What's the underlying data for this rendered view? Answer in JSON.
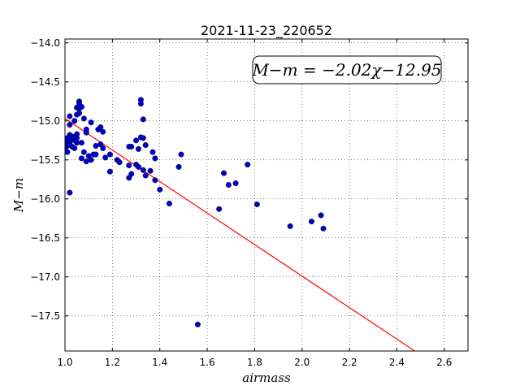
{
  "chart_data": {
    "type": "scatter",
    "title": "2021-11-23_220652",
    "xlabel": "airmass",
    "ylabel": "M−m",
    "xlim": [
      1.0,
      2.7
    ],
    "ylim": [
      -17.95,
      -13.95
    ],
    "grid": true,
    "x_ticks": [
      1.0,
      1.2,
      1.4,
      1.6,
      1.8,
      2.0,
      2.2,
      2.4,
      2.6
    ],
    "x_tick_labels": [
      "1.0",
      "1.2",
      "1.4",
      "1.6",
      "1.8",
      "2.0",
      "2.2",
      "2.4",
      "2.6"
    ],
    "y_ticks": [
      -14.0,
      -14.5,
      -15.0,
      -15.5,
      -16.0,
      -16.5,
      -17.0,
      -17.5
    ],
    "y_tick_labels": [
      "−14.0",
      "−14.5",
      "−15.0",
      "−15.5",
      "−16.0",
      "−16.5",
      "−17.0",
      "−17.5"
    ],
    "annotation": "M−m = −2.02χ−12.95",
    "fit": {
      "slope": -2.02,
      "intercept": -12.95,
      "color": "#ff0000"
    },
    "point_color": "#0000cc",
    "points": [
      [
        1.0,
        -15.35
      ],
      [
        1.0,
        -15.28
      ],
      [
        1.01,
        -15.4
      ],
      [
        1.01,
        -15.32
      ],
      [
        1.01,
        -15.22
      ],
      [
        1.02,
        -15.05
      ],
      [
        1.02,
        -15.18
      ],
      [
        1.02,
        -15.26
      ],
      [
        1.02,
        -15.3
      ],
      [
        1.02,
        -15.92
      ],
      [
        1.02,
        -14.94
      ],
      [
        1.03,
        -15.33
      ],
      [
        1.03,
        -15.2
      ],
      [
        1.04,
        -15.0
      ],
      [
        1.04,
        -15.35
      ],
      [
        1.04,
        -15.25
      ],
      [
        1.05,
        -15.17
      ],
      [
        1.05,
        -15.22
      ],
      [
        1.05,
        -14.83
      ],
      [
        1.05,
        -14.92
      ],
      [
        1.05,
        -15.28
      ],
      [
        1.06,
        -14.75
      ],
      [
        1.06,
        -14.78
      ],
      [
        1.06,
        -14.84
      ],
      [
        1.06,
        -14.9
      ],
      [
        1.07,
        -14.82
      ],
      [
        1.07,
        -15.28
      ],
      [
        1.07,
        -15.48
      ],
      [
        1.08,
        -15.4
      ],
      [
        1.08,
        -14.97
      ],
      [
        1.09,
        -15.11
      ],
      [
        1.09,
        -15.15
      ],
      [
        1.09,
        -15.52
      ],
      [
        1.1,
        -15.45
      ],
      [
        1.11,
        -15.02
      ],
      [
        1.11,
        -15.5
      ],
      [
        1.12,
        -15.43
      ],
      [
        1.13,
        -15.32
      ],
      [
        1.13,
        -15.43
      ],
      [
        1.14,
        -15.11
      ],
      [
        1.15,
        -15.08
      ],
      [
        1.15,
        -15.3
      ],
      [
        1.16,
        -15.35
      ],
      [
        1.16,
        -15.14
      ],
      [
        1.17,
        -15.47
      ],
      [
        1.19,
        -15.65
      ],
      [
        1.19,
        -15.43
      ],
      [
        1.22,
        -15.5
      ],
      [
        1.23,
        -15.53
      ],
      [
        1.27,
        -15.33
      ],
      [
        1.27,
        -15.57
      ],
      [
        1.27,
        -15.73
      ],
      [
        1.28,
        -15.33
      ],
      [
        1.28,
        -15.68
      ],
      [
        1.3,
        -15.25
      ],
      [
        1.3,
        -15.56
      ],
      [
        1.31,
        -15.59
      ],
      [
        1.31,
        -15.36
      ],
      [
        1.32,
        -14.73
      ],
      [
        1.32,
        -14.78
      ],
      [
        1.32,
        -15.21
      ],
      [
        1.33,
        -15.22
      ],
      [
        1.33,
        -14.98
      ],
      [
        1.33,
        -15.63
      ],
      [
        1.34,
        -15.7
      ],
      [
        1.34,
        -15.31
      ],
      [
        1.36,
        -15.64
      ],
      [
        1.37,
        -15.4
      ],
      [
        1.38,
        -15.48
      ],
      [
        1.38,
        -15.76
      ],
      [
        1.4,
        -15.88
      ],
      [
        1.44,
        -16.06
      ],
      [
        1.48,
        -15.59
      ],
      [
        1.49,
        -15.43
      ],
      [
        1.56,
        -17.61
      ],
      [
        1.65,
        -16.13
      ],
      [
        1.67,
        -15.67
      ],
      [
        1.69,
        -15.82
      ],
      [
        1.72,
        -15.8
      ],
      [
        1.77,
        -15.56
      ],
      [
        1.81,
        -16.07
      ],
      [
        1.95,
        -16.35
      ],
      [
        2.04,
        -16.29
      ],
      [
        2.08,
        -16.21
      ],
      [
        2.09,
        -16.38
      ]
    ]
  }
}
